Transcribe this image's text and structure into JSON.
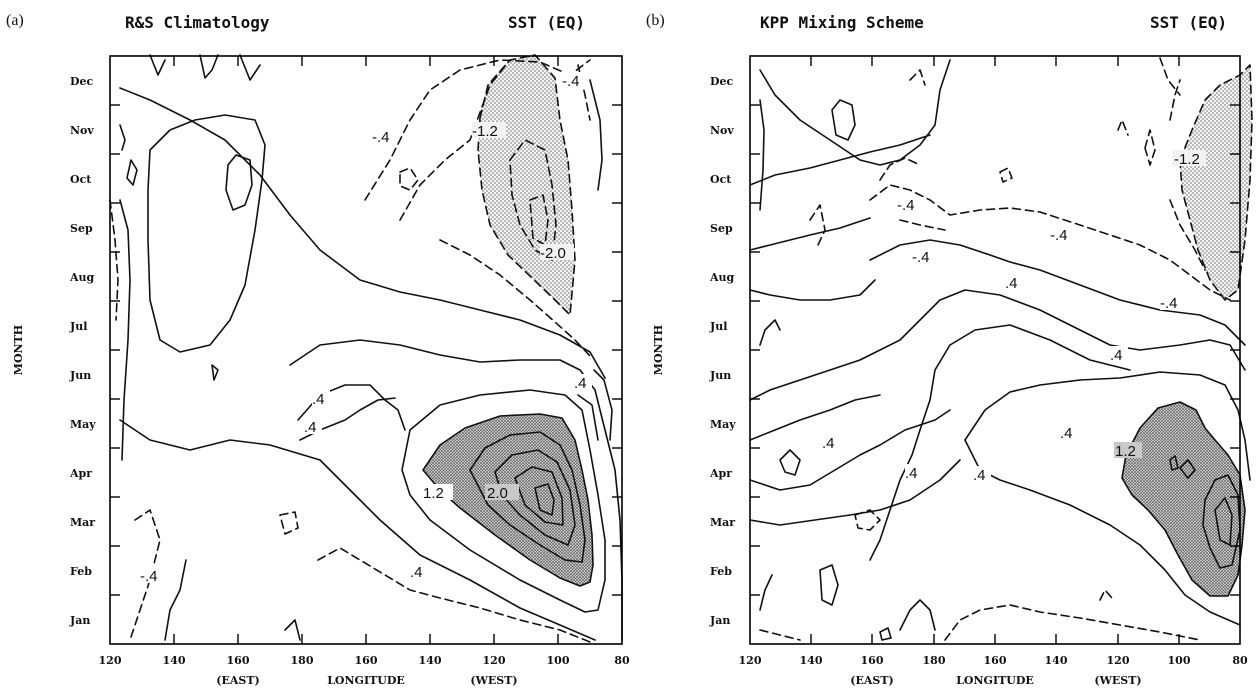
{
  "chart_data": [
    {
      "type": "contour",
      "panel_label": "(a)",
      "title": "R&S Climatology",
      "subtitle": "SST (EQ)",
      "xlabel": "LONGITUDE",
      "ylabel": "MONTH",
      "x_ticks": [
        "120",
        "140",
        "160",
        "180",
        "160",
        "140",
        "120",
        "100",
        "80"
      ],
      "x_subticks": [
        "(EAST)",
        "(WEST)"
      ],
      "y_ticks": [
        "Jan",
        "Feb",
        "Mar",
        "Apr",
        "May",
        "Jun",
        "Jul",
        "Aug",
        "Sep",
        "Oct",
        "Nov",
        "Dec"
      ],
      "contour_labels": [
        ".4",
        ".4",
        ".4",
        ".4",
        "1.2",
        "2.0",
        "-.4",
        "-.4",
        "-.4",
        "-1.2",
        "-2.0"
      ],
      "contour_interval": 0.4,
      "shading": "values >= 1.2 dark shaded, values <= -1.2 light stippled",
      "min_anomaly": -2.0,
      "max_anomaly": 2.0
    },
    {
      "type": "contour",
      "panel_label": "(b)",
      "title": "KPP Mixing Scheme",
      "subtitle": "SST (EQ)",
      "xlabel": "LONGITUDE",
      "ylabel": "MONTH",
      "x_ticks": [
        "120",
        "140",
        "160",
        "180",
        "160",
        "140",
        "120",
        "100",
        "80"
      ],
      "x_subticks": [
        "(EAST)",
        "(WEST)"
      ],
      "y_ticks": [
        "Jan",
        "Feb",
        "Mar",
        "Apr",
        "May",
        "Jun",
        "Jul",
        "Aug",
        "Sep",
        "Oct",
        "Nov",
        "Dec"
      ],
      "contour_labels": [
        ".4",
        ".4",
        ".4",
        ".4",
        ".4",
        ".4",
        "1.2",
        "-.4",
        "-.4",
        "-.4",
        "-.4",
        "-1.2"
      ],
      "contour_interval": 0.4,
      "shading": "values >= 1.2 dark shaded, values <= -1.2 light stippled",
      "min_anomaly": -1.2,
      "max_anomaly": 1.2
    }
  ]
}
